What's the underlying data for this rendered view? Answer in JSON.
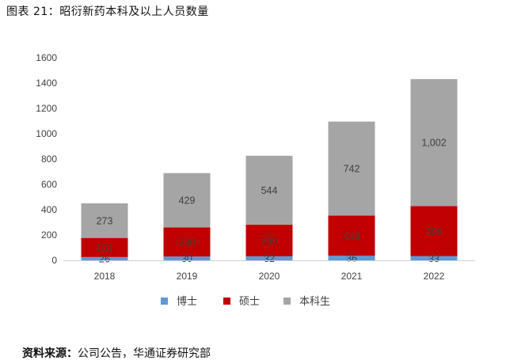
{
  "figure_title": "图表 21：昭衍新药本科及以上人员数量",
  "source": {
    "label": "资料来源：",
    "text": "公司公告，华通证券研究部"
  },
  "chart_data": {
    "type": "bar",
    "stacked": true,
    "categories": [
      "2018",
      "2019",
      "2020",
      "2021",
      "2022"
    ],
    "series": [
      {
        "name": "博士",
        "values": [
          26,
          30,
          32,
          36,
          33
        ],
        "color": "#5b9bd5",
        "labels": [
          "26",
          "30",
          "32",
          "36",
          "33"
        ]
      },
      {
        "name": "硕士",
        "values": [
          151,
          230,
          250,
          318,
          396
        ],
        "color": "#c00000",
        "labels": [
          "151",
          "230",
          "250",
          "318",
          "396"
        ]
      },
      {
        "name": "本科生",
        "values": [
          273,
          429,
          544,
          742,
          1002
        ],
        "color": "#a5a5a5",
        "labels": [
          "273",
          "429",
          "544",
          "742",
          "1,002"
        ]
      }
    ],
    "ylim": [
      0,
      1600
    ],
    "yticks": [
      0,
      200,
      400,
      600,
      800,
      1000,
      1200,
      1400,
      1600
    ],
    "xlabel": "",
    "ylabel": "",
    "grid": false,
    "legend_position": "bottom"
  }
}
